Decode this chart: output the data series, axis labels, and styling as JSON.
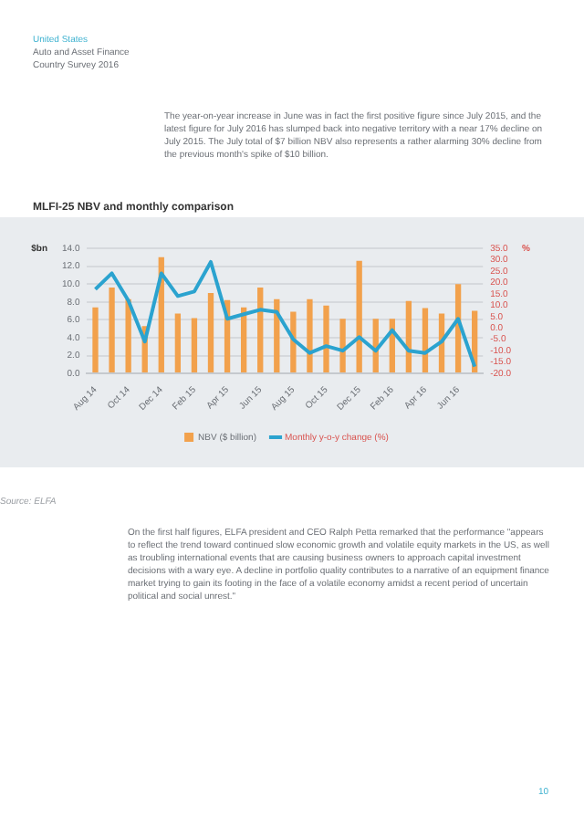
{
  "chart_data": {
    "type": "bar",
    "title": "MLFI-25 NBV and monthly comparison",
    "categories": [
      "Aug 14",
      null,
      "Oct 14",
      null,
      "Dec 14",
      null,
      "Feb 15",
      null,
      "Apr 15",
      null,
      "Jun 15",
      null,
      "Aug 15",
      null,
      "Oct 15",
      null,
      "Dec 15",
      null,
      "Feb 16",
      null,
      "Apr 16",
      null,
      "Jun 16",
      null
    ],
    "series": [
      {
        "name": "NBV ($ billion)",
        "color": "#f2a14c",
        "values": [
          7.4,
          9.6,
          8.3,
          5.3,
          13.0,
          6.7,
          6.2,
          9.0,
          8.2,
          7.4,
          9.6,
          8.3,
          6.9,
          8.3,
          7.6,
          6.1,
          12.6,
          6.1,
          6.1,
          8.1,
          7.3,
          6.7,
          10.0,
          7.0
        ]
      },
      {
        "name": "Monthly y-o-y change (%)",
        "type": "line",
        "axis": "y2",
        "color": "#2ba3cf",
        "values": [
          17,
          24,
          12,
          -6,
          24,
          14,
          16,
          29,
          4,
          6,
          8,
          7,
          -5,
          -11,
          -8,
          -10,
          -4,
          -10,
          -1,
          -10,
          -11,
          -6,
          4,
          -17
        ]
      }
    ],
    "ylabel": "$bn",
    "y2label": "%",
    "ylim": [
      0,
      14
    ],
    "yticks": [
      {
        "value": 0,
        "label": "0.0"
      },
      {
        "value": 2,
        "label": "2.0"
      },
      {
        "value": 4,
        "label": "4.0"
      },
      {
        "value": 6,
        "label": "6.0"
      },
      {
        "value": 8,
        "label": "8.0"
      },
      {
        "value": 10,
        "label": "10.0"
      },
      {
        "value": 12,
        "label": "12.0"
      },
      {
        "value": 14,
        "label": "14.0"
      }
    ],
    "y2lim": [
      -20,
      35
    ],
    "y2ticks": [
      {
        "value": -20,
        "label": "-20.0"
      },
      {
        "value": -15,
        "label": "-15.0"
      },
      {
        "value": -10,
        "label": "-10.0"
      },
      {
        "value": -5,
        "label": "-5.0"
      },
      {
        "value": 0,
        "label": "0.0"
      },
      {
        "value": 5,
        "label": "5.0"
      },
      {
        "value": 10,
        "label": "10.0"
      },
      {
        "value": 15,
        "label": "15.0"
      },
      {
        "value": 20,
        "label": "20.0"
      },
      {
        "value": 25,
        "label": "25.0"
      },
      {
        "value": 30,
        "label": "30.0"
      },
      {
        "value": 35,
        "label": "35.0"
      }
    ],
    "grid": "y",
    "legend": "bottom",
    "marker": "none",
    "annotations": [
      "United States",
      "Auto and Asset Finance",
      "Country Survey 2016",
      "The year-on-year increase in June was in fact the first positive figure since July 2015, and the latest figure for July 2016 has slumped back into negative territory with a near 17% decline on July 2015. The July total of $7 billion NBV also represents a rather alarming 30% decline from the previous month's spike of $10 billion.",
      "Source: ELFA",
      "On the first half figures, ELFA president and CEO Ralph Petta remarked that the performance \"appears to reflect the trend toward continued slow economic growth and volatile equity markets in the US, as well as troubling international events that are causing business owners to approach capital investment decisions with a wary eye. A decline in portfolio quality contributes to a narrative of an equipment finance market trying to gain its footing in the face of a volatile economy amidst a recent period of uncertain political and social unrest.\"",
      "10"
    ]
  }
}
